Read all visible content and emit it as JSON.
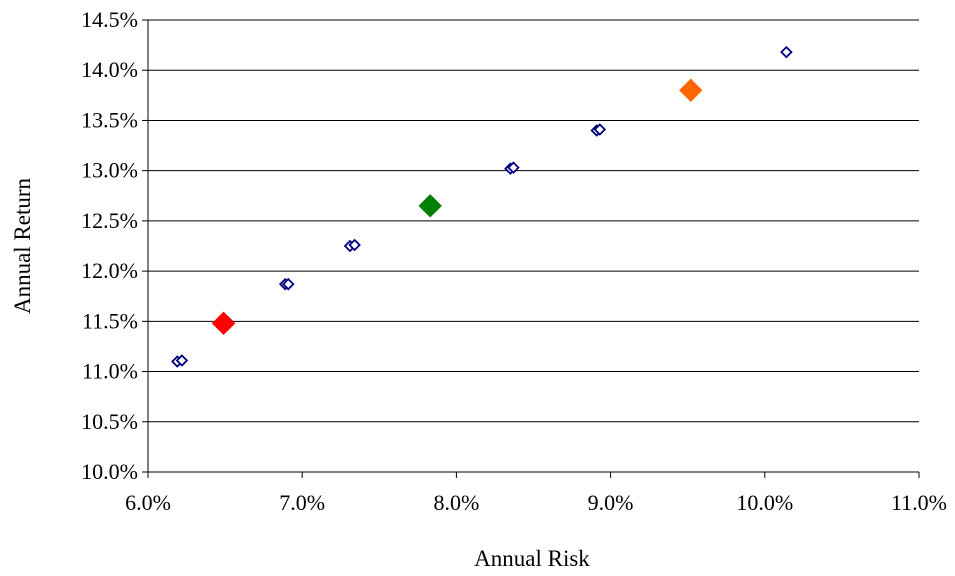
{
  "chart_data": {
    "type": "scatter",
    "title": "",
    "xlabel": "Annual Risk",
    "ylabel": "Annual Return",
    "xlim": [
      0.06,
      0.11
    ],
    "ylim": [
      0.1,
      0.145
    ],
    "x_ticks": [
      0.06,
      0.07,
      0.08,
      0.09,
      0.1,
      0.11
    ],
    "y_ticks": [
      0.1,
      0.105,
      0.11,
      0.115,
      0.12,
      0.125,
      0.13,
      0.135,
      0.14,
      0.145
    ],
    "x_tick_labels": [
      "6.0%",
      "7.0%",
      "8.0%",
      "9.0%",
      "10.0%",
      "11.0%"
    ],
    "y_tick_labels": [
      "10.0%",
      "10.5%",
      "11.0%",
      "11.5%",
      "12.0%",
      "12.5%",
      "13.0%",
      "13.5%",
      "14.0%",
      "14.5%"
    ],
    "grid": "horizontal",
    "legend": "none",
    "series": [
      {
        "marker": "open-diamond",
        "color": "#000080",
        "points": [
          {
            "x": 0.0619,
            "y": 0.111
          },
          {
            "x": 0.0622,
            "y": 0.1111
          },
          {
            "x": 0.0652,
            "y": 0.1149
          },
          {
            "x": 0.0689,
            "y": 0.1187
          },
          {
            "x": 0.0691,
            "y": 0.1187
          },
          {
            "x": 0.0731,
            "y": 0.1225
          },
          {
            "x": 0.0734,
            "y": 0.1226
          },
          {
            "x": 0.0835,
            "y": 0.1302
          },
          {
            "x": 0.0837,
            "y": 0.1303
          },
          {
            "x": 0.0891,
            "y": 0.134
          },
          {
            "x": 0.0893,
            "y": 0.1341
          },
          {
            "x": 0.1014,
            "y": 0.1418
          }
        ]
      },
      {
        "marker": "filled-diamond",
        "color": "#ff0000",
        "points": [
          {
            "x": 0.0649,
            "y": 0.1148
          }
        ]
      },
      {
        "marker": "filled-diamond",
        "color": "#008000",
        "points": [
          {
            "x": 0.0783,
            "y": 0.1265
          }
        ]
      },
      {
        "marker": "filled-diamond",
        "color": "#ff6600",
        "points": [
          {
            "x": 0.0952,
            "y": 0.138
          }
        ]
      }
    ]
  }
}
